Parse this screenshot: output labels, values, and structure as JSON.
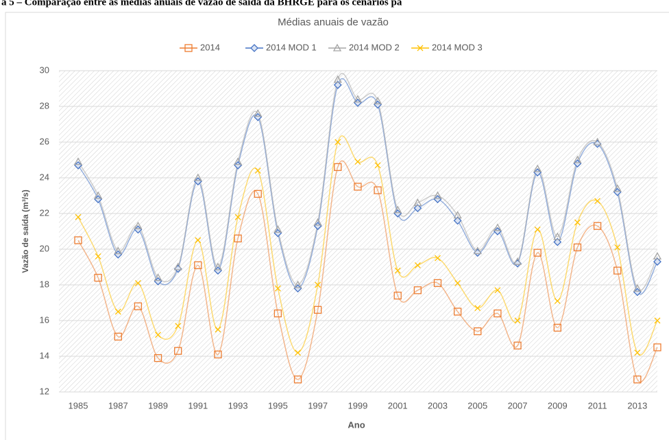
{
  "caption": "a 5 – Comparação entre as médias anuais de vazão de saída da BHRGE para os cenários pa",
  "chart_data": {
    "type": "line",
    "title": "Médias anuais de vazão",
    "x_label": "Ano",
    "y_label": "Vazão de saída (m³/s)",
    "x": [
      1985,
      1986,
      1987,
      1988,
      1989,
      1990,
      1991,
      1992,
      1993,
      1994,
      1995,
      1996,
      1997,
      1998,
      1999,
      2000,
      2001,
      2002,
      2003,
      2004,
      2005,
      2006,
      2007,
      2008,
      2009,
      2010,
      2011,
      2012,
      2013,
      2014
    ],
    "xlim": [
      1985,
      2014
    ],
    "xticks": [
      1985,
      1987,
      1989,
      1991,
      1993,
      1995,
      1997,
      1999,
      2001,
      2003,
      2005,
      2007,
      2009,
      2011,
      2013
    ],
    "ylim": [
      12,
      30
    ],
    "yticks": [
      12,
      14,
      16,
      18,
      20,
      22,
      24,
      26,
      28,
      30
    ],
    "grid": true,
    "legend": "top",
    "series": [
      {
        "name": "2014",
        "color": "#ed7d31",
        "marker": "square",
        "values": [
          20.5,
          18.4,
          15.1,
          16.8,
          13.9,
          14.3,
          19.1,
          14.1,
          20.6,
          23.1,
          16.4,
          12.7,
          16.6,
          24.6,
          23.5,
          23.3,
          17.4,
          17.7,
          18.1,
          16.5,
          15.4,
          16.4,
          14.6,
          19.8,
          15.6,
          20.1,
          21.3,
          18.8,
          12.7,
          14.5
        ]
      },
      {
        "name": "2014 MOD 1",
        "color": "#4472c4",
        "marker": "diamond",
        "values": [
          24.7,
          22.8,
          19.7,
          21.1,
          18.2,
          18.9,
          23.8,
          18.8,
          24.7,
          27.4,
          20.9,
          17.8,
          21.3,
          29.2,
          28.2,
          28.1,
          22.0,
          22.3,
          22.8,
          21.6,
          19.8,
          21.0,
          19.2,
          24.3,
          20.4,
          24.8,
          25.9,
          23.2,
          17.6,
          19.3
        ]
      },
      {
        "name": "2014 MOD 2",
        "color": "#a5a5a5",
        "marker": "triangle",
        "values": [
          24.9,
          23.0,
          19.9,
          21.3,
          18.4,
          19.0,
          24.0,
          19.0,
          24.9,
          27.6,
          21.1,
          18.0,
          21.5,
          29.5,
          28.4,
          28.3,
          22.2,
          22.6,
          23.0,
          21.9,
          19.9,
          21.2,
          19.3,
          24.5,
          20.7,
          25.0,
          26.0,
          23.4,
          17.8,
          19.6
        ]
      },
      {
        "name": "2014 MOD 3",
        "color": "#ffc000",
        "marker": "x",
        "values": [
          21.8,
          19.6,
          16.5,
          18.1,
          15.2,
          15.7,
          20.5,
          15.5,
          21.8,
          24.4,
          17.8,
          14.2,
          18.0,
          26.0,
          24.9,
          24.7,
          18.8,
          19.1,
          19.5,
          18.1,
          16.7,
          17.7,
          16.0,
          21.1,
          17.1,
          21.5,
          22.7,
          20.1,
          14.2,
          16.0
        ]
      }
    ]
  }
}
